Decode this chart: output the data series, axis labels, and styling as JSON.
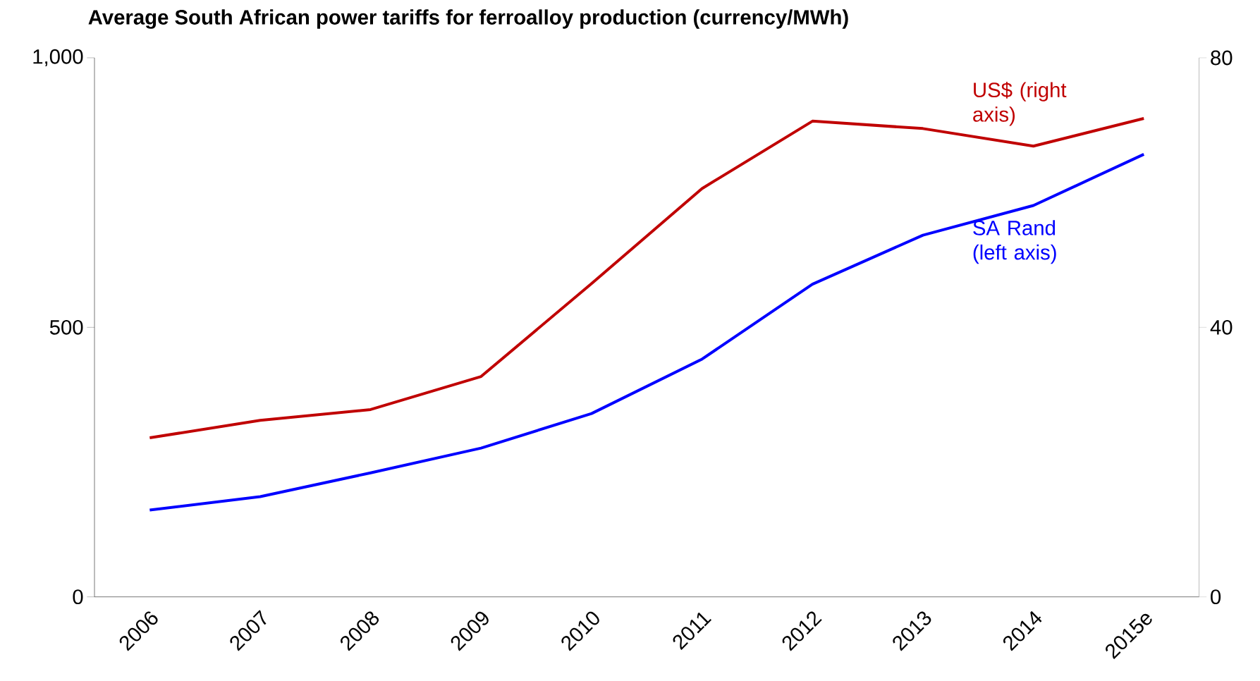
{
  "chart_data": {
    "type": "line",
    "title": "Average South African power tariffs for ferroalloy production (currency/MWh)",
    "categories": [
      "2006",
      "2007",
      "2008",
      "2009",
      "2010",
      "2011",
      "2012",
      "2013",
      "2014",
      "2015e"
    ],
    "series": [
      {
        "name": "US$ (right axis)",
        "color": "#c00000",
        "axis": "y2",
        "values": [
          23.6,
          26.2,
          27.8,
          32.7,
          46.5,
          60.6,
          70.6,
          69.5,
          66.9,
          71.0
        ]
      },
      {
        "name": "SA Rand (left axis)",
        "color": "#0000ff",
        "values": [
          161,
          186,
          230,
          276,
          340,
          441,
          580,
          671,
          726,
          821
        ]
      }
    ],
    "ylim": [
      0,
      1000
    ],
    "yticks": [
      {
        "value": 0,
        "label": "0"
      },
      {
        "value": 500,
        "label": "500"
      },
      {
        "value": 1000,
        "label": "1,000"
      }
    ],
    "y2lim": [
      0,
      80
    ],
    "y2ticks": [
      0,
      40,
      80
    ],
    "grid": false,
    "legend": false,
    "marker": "none",
    "line_style": "solid"
  }
}
